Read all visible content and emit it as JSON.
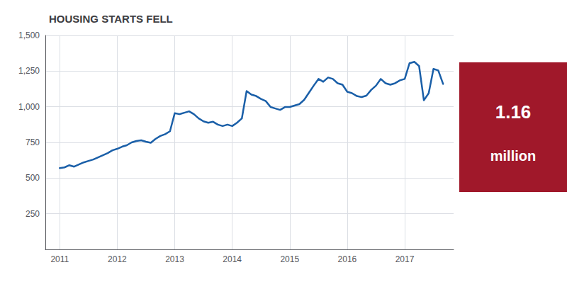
{
  "chart_data": {
    "type": "line",
    "title": "HOUSING STARTS FELL",
    "color": "#1a5fa8",
    "grid": true,
    "x": [
      2011.0,
      2011.083,
      2011.167,
      2011.25,
      2011.333,
      2011.417,
      2011.5,
      2011.583,
      2011.667,
      2011.75,
      2011.833,
      2011.917,
      2012.0,
      2012.083,
      2012.167,
      2012.25,
      2012.333,
      2012.417,
      2012.5,
      2012.583,
      2012.667,
      2012.75,
      2012.833,
      2012.917,
      2013.0,
      2013.083,
      2013.167,
      2013.25,
      2013.333,
      2013.417,
      2013.5,
      2013.583,
      2013.667,
      2013.75,
      2013.833,
      2013.917,
      2014.0,
      2014.083,
      2014.167,
      2014.25,
      2014.333,
      2014.417,
      2014.5,
      2014.583,
      2014.667,
      2014.75,
      2014.833,
      2014.917,
      2015.0,
      2015.083,
      2015.167,
      2015.25,
      2015.333,
      2015.417,
      2015.5,
      2015.583,
      2015.667,
      2015.75,
      2015.833,
      2015.917,
      2016.0,
      2016.083,
      2016.167,
      2016.25,
      2016.333,
      2016.417,
      2016.5,
      2016.583,
      2016.667,
      2016.75,
      2016.833,
      2016.917,
      2017.0,
      2017.083,
      2017.167,
      2017.25,
      2017.333,
      2017.417,
      2017.5,
      2017.583,
      2017.667
    ],
    "values": [
      570,
      575,
      590,
      580,
      595,
      610,
      620,
      630,
      645,
      660,
      675,
      695,
      705,
      720,
      730,
      750,
      760,
      765,
      755,
      748,
      775,
      795,
      808,
      828,
      955,
      948,
      958,
      968,
      948,
      918,
      898,
      888,
      895,
      875,
      865,
      875,
      865,
      888,
      918,
      1110,
      1085,
      1075,
      1055,
      1040,
      998,
      988,
      978,
      998,
      998,
      1008,
      1018,
      1048,
      1098,
      1148,
      1195,
      1175,
      1205,
      1195,
      1165,
      1155,
      1105,
      1095,
      1075,
      1068,
      1078,
      1118,
      1148,
      1195,
      1165,
      1155,
      1165,
      1185,
      1195,
      1305,
      1315,
      1285,
      1045,
      1095,
      1265,
      1255,
      1160
    ],
    "xlim": [
      2010.75,
      2017.85
    ],
    "xticks": [
      2011,
      2012,
      2013,
      2014,
      2015,
      2016,
      2017
    ],
    "ylim": [
      0,
      1500
    ],
    "yticks": [
      {
        "value": 0,
        "label": ""
      },
      250,
      500,
      750,
      {
        "value": 1000,
        "label": "1,000"
      },
      {
        "value": 1250,
        "label": "1,250"
      },
      {
        "value": 1500,
        "label": "1,500"
      }
    ],
    "annotations": [
      {
        "lines": [
          "1.16",
          "million"
        ],
        "color": "#a0182a",
        "text_color": "#ffffff"
      }
    ]
  }
}
